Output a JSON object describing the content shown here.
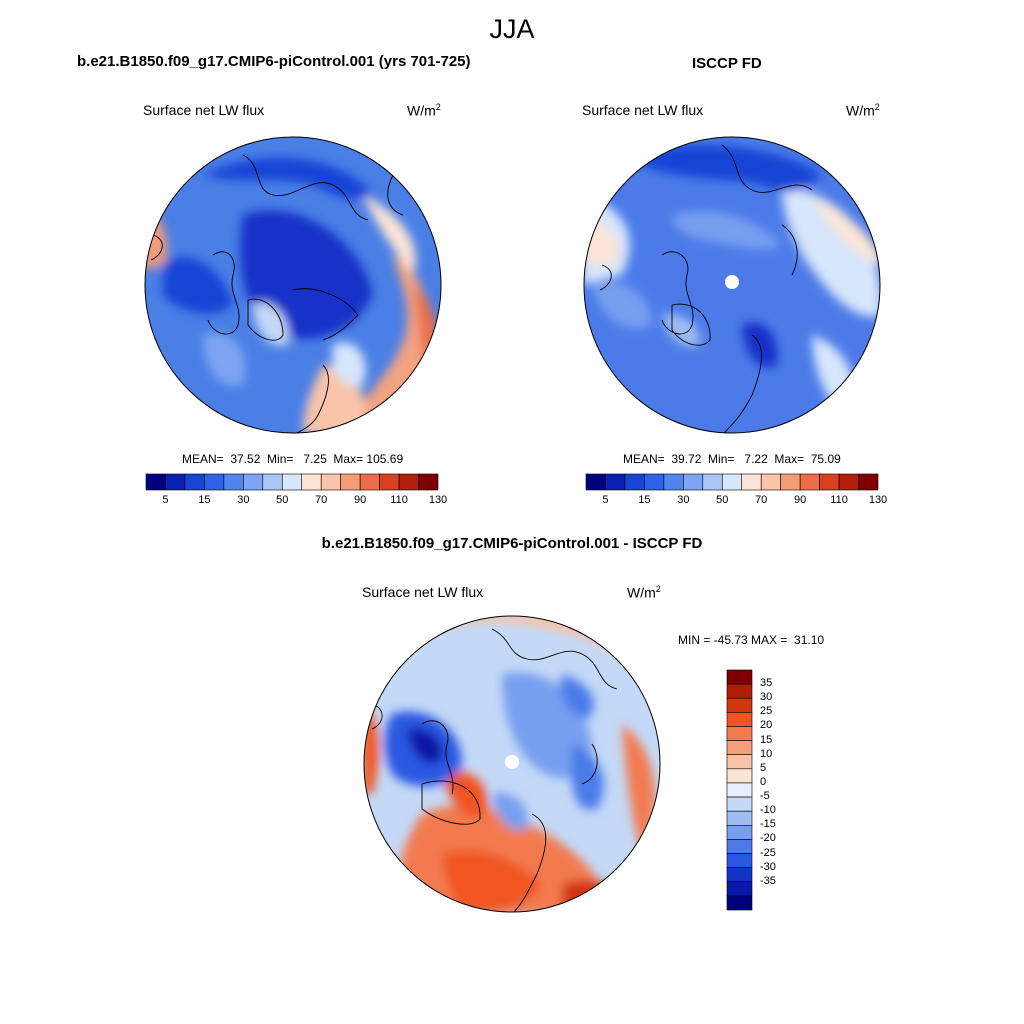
{
  "season": "JJA",
  "panels": {
    "model": {
      "title": "b.e21.B1850.f09_g17.CMIP6-piControl.001 (yrs 701-725)",
      "variable": "Surface net LW flux",
      "units_base": "W/m",
      "units_exp": "2",
      "stats": "MEAN=  37.52  Min=   7.25  Max= 105.69"
    },
    "obs": {
      "title": "ISCCP FD",
      "variable": "Surface net LW flux",
      "units_base": "W/m",
      "units_exp": "2",
      "stats": "MEAN=  39.72  Min=   7.22  Max=  75.09"
    },
    "diff": {
      "title": "b.e21.B1850.f09_g17.CMIP6-piControl.001 - ISCCP FD",
      "variable": "Surface net LW flux",
      "units_base": "W/m",
      "units_exp": "2",
      "stats": "MIN = -45.73 MAX =  31.10"
    }
  },
  "abs_colorbar": {
    "colors": [
      "#00007f",
      "#0a1fb4",
      "#1745d6",
      "#2e62e8",
      "#5286ee",
      "#7ea5f3",
      "#a9c6f7",
      "#d6e6fb",
      "#fde5d6",
      "#f9c4a9",
      "#f49c78",
      "#ec6e48",
      "#d9401f",
      "#b41e0c",
      "#7f0000"
    ],
    "labels": [
      "5",
      "15",
      "30",
      "50",
      "70",
      "90",
      "110",
      "130"
    ]
  },
  "diff_colorbar": {
    "colors": [
      "#7f0000",
      "#b11d04",
      "#d5350c",
      "#f05422",
      "#f37a4f",
      "#f59f7b",
      "#f8c3a6",
      "#fde3d2",
      "#e6effb",
      "#c4d9f7",
      "#9ebef2",
      "#779ff0",
      "#4c7be9",
      "#2a58e2",
      "#1232c8",
      "#0918a6",
      "#00007f"
    ],
    "labels": [
      "35",
      "30",
      "25",
      "20",
      "15",
      "10",
      "5",
      "0",
      "-5",
      "-10",
      "-15",
      "-20",
      "-25",
      "-30",
      "-35"
    ]
  }
}
